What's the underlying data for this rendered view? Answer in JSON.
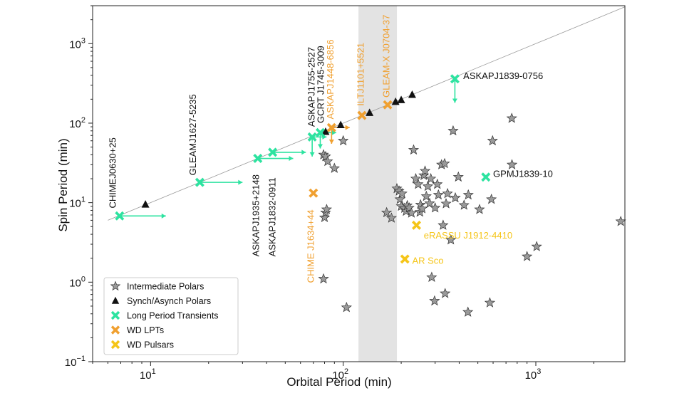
{
  "chart_data": {
    "type": "scatter",
    "title": "",
    "xlabel": "Orbital Period (min)",
    "ylabel": "Spin Period (min)",
    "xscale": "log",
    "yscale": "log",
    "xlim": [
      5,
      2900
    ],
    "ylim": [
      0.1,
      3000
    ],
    "xticks": [
      {
        "value": 10,
        "base": "10",
        "exp": "1"
      },
      {
        "value": 100,
        "base": "10",
        "exp": "2"
      },
      {
        "value": 1000,
        "base": "10",
        "exp": "3"
      }
    ],
    "yticks": [
      {
        "value": 0.1,
        "base": "10",
        "exp": "−1"
      },
      {
        "value": 1,
        "base": "10",
        "exp": "0"
      },
      {
        "value": 10,
        "base": "10",
        "exp": "1"
      },
      {
        "value": 100,
        "base": "10",
        "exp": "2"
      },
      {
        "value": 1000,
        "base": "10",
        "exp": "3"
      }
    ],
    "grid": false,
    "legend_position": "lower-left",
    "equality_line": {
      "from": 6,
      "to": 2900
    },
    "shaded_band": {
      "x": [
        120,
        190
      ],
      "color": "#e3e3e3"
    },
    "legend": [
      {
        "label": "Intermediate Polars",
        "marker": "star",
        "color": "#9a9a9a"
      },
      {
        "label": "Synch/Asynch Polars",
        "marker": "triangle",
        "color": "#111111"
      },
      {
        "label": "Long Period Transients",
        "marker": "x",
        "color": "#2de3a0"
      },
      {
        "label": "WD LPTs",
        "marker": "x",
        "color": "#f0a030"
      },
      {
        "label": "WD Pulsars",
        "marker": "x",
        "color": "#f5c518"
      }
    ],
    "series": [
      {
        "name": "Intermediate Polars",
        "marker": "star",
        "color": "#9a9a9a",
        "points": [
          [
            79,
            1.1
          ],
          [
            80,
            6.5
          ],
          [
            81,
            7.5
          ],
          [
            82,
            8.2
          ],
          [
            79,
            40
          ],
          [
            81,
            38
          ],
          [
            83,
            33
          ],
          [
            90,
            27
          ],
          [
            100,
            60
          ],
          [
            104,
            0.48
          ],
          [
            168,
            7.5
          ],
          [
            178,
            6.4
          ],
          [
            190,
            15
          ],
          [
            195,
            14
          ],
          [
            197,
            11
          ],
          [
            200,
            9
          ],
          [
            202,
            13
          ],
          [
            208,
            8.5
          ],
          [
            212,
            7.8
          ],
          [
            215,
            9.2
          ],
          [
            220,
            8.6
          ],
          [
            226,
            7.4
          ],
          [
            232,
            46
          ],
          [
            238,
            20
          ],
          [
            245,
            17
          ],
          [
            250,
            7.6
          ],
          [
            252,
            9.4
          ],
          [
            257,
            8.4
          ],
          [
            262,
            22
          ],
          [
            266,
            25
          ],
          [
            270,
            12
          ],
          [
            275,
            16
          ],
          [
            281,
            9.8
          ],
          [
            285,
            20
          ],
          [
            288,
            1.15
          ],
          [
            298,
            0.58
          ],
          [
            300,
            8.6
          ],
          [
            308,
            17
          ],
          [
            312,
            12.5
          ],
          [
            324,
            30
          ],
          [
            330,
            5.2
          ],
          [
            336,
            31
          ],
          [
            338,
            0.72
          ],
          [
            342,
            9.7
          ],
          [
            348,
            13
          ],
          [
            362,
            3.4
          ],
          [
            372,
            80
          ],
          [
            382,
            11.5
          ],
          [
            396,
            21
          ],
          [
            424,
            9.3
          ],
          [
            444,
            0.42
          ],
          [
            446,
            12.5
          ],
          [
            510,
            8.2
          ],
          [
            577,
            0.55
          ],
          [
            588,
            11
          ],
          [
            596,
            60
          ],
          [
            750,
            115
          ],
          [
            752,
            30
          ],
          [
            900,
            2.1
          ],
          [
            1010,
            2.8
          ],
          [
            2760,
            5.8
          ]
        ]
      },
      {
        "name": "Synch/Asynch Polars",
        "marker": "triangle",
        "color": "#111111",
        "points": [
          [
            9.4,
            9.5
          ],
          [
            81,
            78
          ],
          [
            97,
            95
          ],
          [
            137,
            135
          ],
          [
            187,
            186
          ],
          [
            200,
            196
          ],
          [
            228,
            228
          ]
        ]
      },
      {
        "name": "Long Period Transients",
        "marker": "x",
        "color": "#2de3a0",
        "points": [
          [
            6.9,
            6.8
          ],
          [
            18,
            18
          ],
          [
            36,
            36
          ],
          [
            43,
            43
          ],
          [
            69,
            67
          ],
          [
            76,
            76
          ],
          [
            380,
            360
          ],
          [
            550,
            21
          ]
        ]
      },
      {
        "name": "WD LPTs",
        "marker": "x",
        "color": "#f0a030",
        "points": [
          [
            70,
            13.2
          ],
          [
            87,
            88
          ],
          [
            125,
            125
          ],
          [
            170,
            170
          ]
        ]
      },
      {
        "name": "WD Pulsars",
        "marker": "x",
        "color": "#f5c518",
        "points": [
          [
            240,
            5.2
          ],
          [
            209,
            1.95
          ]
        ]
      }
    ],
    "arrows": [
      {
        "color": "#2de3a0",
        "from": [
          6.9,
          6.8
        ],
        "to": [
          12,
          6.8
        ]
      },
      {
        "color": "#2de3a0",
        "from": [
          18,
          18
        ],
        "to": [
          30,
          18
        ]
      },
      {
        "color": "#2de3a0",
        "from": [
          36,
          36
        ],
        "to": [
          55,
          36
        ]
      },
      {
        "color": "#2de3a0",
        "from": [
          43,
          43
        ],
        "to": [
          64,
          43
        ]
      },
      {
        "color": "#2de3a0",
        "from": [
          69,
          67
        ],
        "to": [
          82,
          67
        ]
      },
      {
        "color": "#2de3a0",
        "from": [
          69,
          67
        ],
        "to": [
          69,
          38
        ]
      },
      {
        "color": "#2de3a0",
        "from": [
          76,
          76
        ],
        "to": [
          92,
          76
        ]
      },
      {
        "color": "#2de3a0",
        "from": [
          76,
          76
        ],
        "to": [
          76,
          48
        ]
      },
      {
        "color": "#2de3a0",
        "from": [
          380,
          360
        ],
        "to": [
          380,
          180
        ]
      },
      {
        "color": "#f0a030",
        "from": [
          87,
          88
        ],
        "to": [
          108,
          88
        ]
      },
      {
        "color": "#f0a030",
        "from": [
          87,
          88
        ],
        "to": [
          87,
          55
        ]
      }
    ],
    "annotations": [
      {
        "text": "CHIMEJ0630+25",
        "x": 6.6,
        "y": 8.5,
        "color": "#111111",
        "rotate": true
      },
      {
        "text": "GLEAMJ1627-5235",
        "x": 17.2,
        "y": 22,
        "color": "#111111",
        "rotate": true
      },
      {
        "text": "ASKAPJ1935+2148",
        "x": 36.5,
        "y": 2.1,
        "color": "#111111",
        "rotate": true
      },
      {
        "text": "ASKAPJ1832-0911",
        "x": 44.5,
        "y": 2.1,
        "color": "#111111",
        "rotate": true
      },
      {
        "text": "ASKAPJ1755-2527",
        "x": 71,
        "y": 90,
        "color": "#111111",
        "rotate": true
      },
      {
        "text": "GCRT J1745-3009",
        "x": 79.5,
        "y": 100,
        "color": "#111111",
        "rotate": true
      },
      {
        "text": "ASKAPJ1448-6856",
        "x": 89,
        "y": 112,
        "color": "#f0a030",
        "rotate": true
      },
      {
        "text": "ILTJ1101+5521",
        "x": 128,
        "y": 165,
        "color": "#f0a030",
        "rotate": true
      },
      {
        "text": "GLEAM-X J0704-37",
        "x": 174,
        "y": 210,
        "color": "#f0a030",
        "rotate": true
      },
      {
        "text": "CHIME J1634+44",
        "x": 70.5,
        "y": 0.98,
        "color": "#f0a030",
        "rotate": true
      },
      {
        "text": "ASKAPJ1839-0756",
        "x": 420,
        "y": 360,
        "color": "#111111",
        "rotate": false
      },
      {
        "text": "GPMJ1839-10",
        "x": 600,
        "y": 21,
        "color": "#111111",
        "rotate": false
      },
      {
        "text": "eRASSU J1912-4410",
        "x": 262,
        "y": 3.55,
        "color": "#f5c518",
        "rotate": false
      },
      {
        "text": "AR Sco",
        "x": 228,
        "y": 1.7,
        "color": "#f5c518",
        "rotate": false
      }
    ]
  }
}
